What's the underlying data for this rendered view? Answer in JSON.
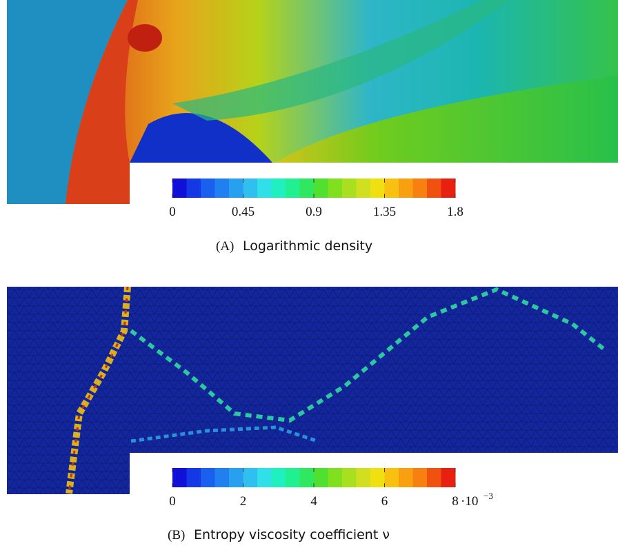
{
  "panels": [
    {
      "colorbar": {
        "ticks": [
          0,
          0.45,
          0.9,
          1.35,
          1.8
        ]
      },
      "caption": {
        "label": "(A)",
        "text": "Logarithmic density"
      }
    },
    {
      "colorbar": {
        "ticks": [
          0,
          2,
          4,
          6,
          8
        ],
        "multiplier": "·10",
        "exponent": "−3"
      },
      "caption": {
        "label": "(B)",
        "text": "Entropy viscosity coefficient ν"
      }
    }
  ]
}
